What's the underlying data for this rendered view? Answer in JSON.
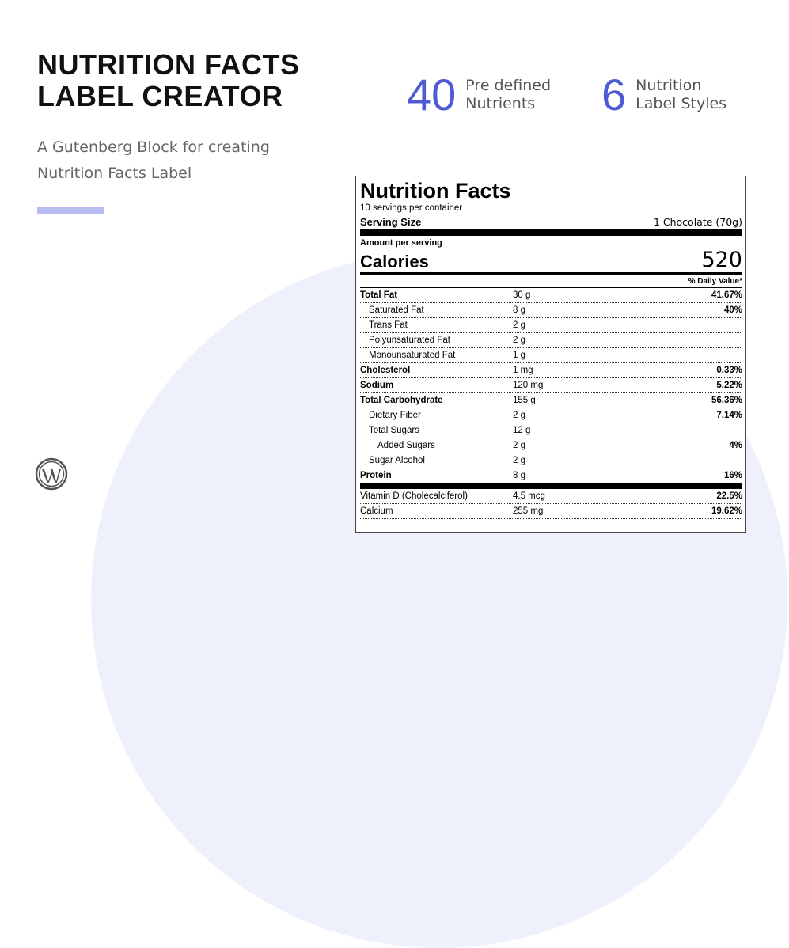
{
  "hero": {
    "title_line1": "NUTRITION FACTS",
    "title_line2": "LABEL CREATOR",
    "subtitle_line1": "A Gutenberg Block for creating",
    "subtitle_line2": "Nutrition Facts Label"
  },
  "stats": [
    {
      "number": "40",
      "line1": "Pre defined",
      "line2": "Nutrients"
    },
    {
      "number": "6",
      "line1": "Nutrition",
      "line2": "Label Styles"
    }
  ],
  "colors": {
    "accent": "#4f5bd5",
    "accent_bar": "#b7bdf3",
    "background_circle": "#eef0fb"
  },
  "icons": {
    "brand": "wordpress-icon"
  },
  "label": {
    "title": "Nutrition Facts",
    "servings": "10 servings per container",
    "serving_size_label": "Serving Size",
    "serving_size_value": "1 Chocolate (70g)",
    "amount_per_serving": "Amount per serving",
    "calories_label": "Calories",
    "calories_value": "520",
    "daily_value_header": "% Daily Value*",
    "rows": [
      {
        "name": "Total Fat",
        "amount": "30 g",
        "dv": "41.67%"
      },
      {
        "name": "Saturated Fat",
        "amount": "8 g",
        "dv": "40%"
      },
      {
        "name": "Trans Fat",
        "amount": "2 g",
        "dv": ""
      },
      {
        "name": "Polyunsaturated Fat",
        "amount": "2 g",
        "dv": ""
      },
      {
        "name": "Monounsaturated Fat",
        "amount": "1 g",
        "dv": ""
      },
      {
        "name": "Cholesterol",
        "amount": "1 mg",
        "dv": "0.33%"
      },
      {
        "name": "Sodium",
        "amount": "120 mg",
        "dv": "5.22%"
      },
      {
        "name": "Total Carbohydrate",
        "amount": "155 g",
        "dv": "56.36%"
      },
      {
        "name": "Dietary Fiber",
        "amount": "2 g",
        "dv": "7.14%"
      },
      {
        "name": "Total Sugars",
        "amount": "12 g",
        "dv": ""
      },
      {
        "name": "Added Sugars",
        "amount": "2 g",
        "dv": "4%"
      },
      {
        "name": "Sugar Alcohol",
        "amount": "2 g",
        "dv": ""
      },
      {
        "name": "Protein",
        "amount": "8 g",
        "dv": "16%"
      },
      {
        "name": "Vitamin D (Cholecalciferol)",
        "amount": "4.5 mcg",
        "dv": "22.5%"
      },
      {
        "name": "Calcium",
        "amount": "255 mg",
        "dv": "19.62%"
      }
    ]
  }
}
